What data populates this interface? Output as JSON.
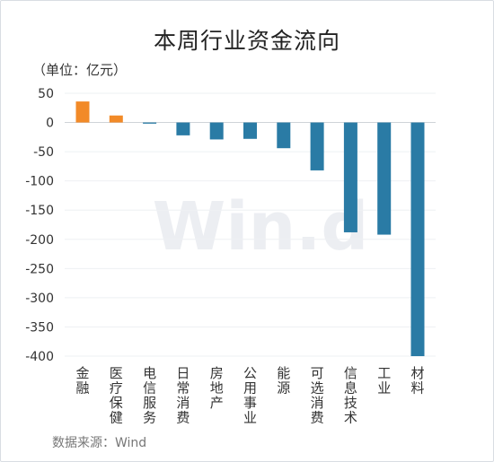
{
  "chart_data": {
    "type": "bar",
    "title": "本周行业资金流向",
    "unit_label": "（单位：亿元）",
    "source": "数据来源：Wind",
    "watermark": "Win.d",
    "categories": [
      "金融",
      "医疗保健",
      "电信服务",
      "日常消费",
      "房地产",
      "公用事业",
      "能源",
      "可选消费",
      "信息技术",
      "工业",
      "材料"
    ],
    "values": [
      36,
      12,
      -2,
      -22,
      -29,
      -28,
      -44,
      -82,
      -188,
      -192,
      -400
    ],
    "ylim": [
      -400,
      50
    ],
    "yticks": [
      50,
      0,
      -50,
      -100,
      -150,
      -200,
      -250,
      -300,
      -350,
      -400
    ],
    "colors": {
      "positive": "#f28a28",
      "negative": "#2a7ba5"
    },
    "grid": true,
    "legend": "none"
  }
}
